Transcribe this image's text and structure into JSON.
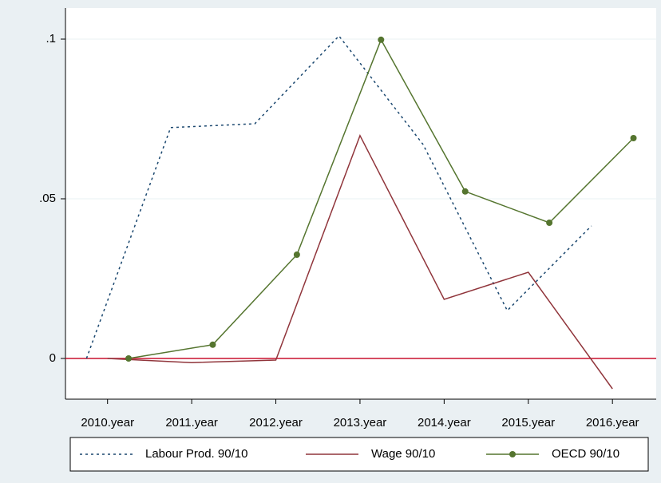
{
  "chart_data": {
    "type": "line",
    "xlim": [
      2009.5,
      2016.52
    ],
    "xticks": [
      {
        "value": 2010,
        "label": "2010.year"
      },
      {
        "value": 2011,
        "label": "2011.year"
      },
      {
        "value": 2012,
        "label": "2012.year"
      },
      {
        "value": 2013,
        "label": "2013.year"
      },
      {
        "value": 2014,
        "label": "2014.year"
      },
      {
        "value": 2015,
        "label": "2015.year"
      },
      {
        "value": 2016,
        "label": "2016.year"
      }
    ],
    "ylim": [
      -0.01275,
      0.10975
    ],
    "yticks": [
      0,
      {
        "value": 0.05,
        "label": ".05"
      },
      {
        "value": 0.1,
        "label": ".1"
      }
    ],
    "grid": true,
    "yline": {
      "value": 0,
      "color": "#c8102e"
    },
    "legend": "bottom",
    "series": [
      {
        "name": "Labour Prod. 90/10",
        "color": "#1a476f",
        "style": "dotted",
        "x": [
          2009.75,
          2010.75,
          2011.75,
          2012.75,
          2013.75,
          2014.75,
          2015.75
        ],
        "values": [
          0,
          0.0723,
          0.0735,
          0.101,
          0.067,
          0.015,
          0.0415
        ]
      },
      {
        "name": "Wage 90/10",
        "color": "#90353b",
        "style": "solid",
        "x": [
          2010,
          2011,
          2012,
          2013,
          2014,
          2015,
          2016
        ],
        "values": [
          0,
          -0.0013,
          -0.0005,
          0.0698,
          0.0185,
          0.027,
          -0.0095
        ]
      },
      {
        "name": "OECD 90/10",
        "color": "#55752f",
        "style": "solid",
        "marker": "circle",
        "x": [
          2010.25,
          2011.25,
          2012.25,
          2013.25,
          2014.25,
          2015.25,
          2016.25
        ],
        "values": [
          0,
          0.0043,
          0.0325,
          0.0998,
          0.0523,
          0.0425,
          0.069
        ]
      }
    ]
  }
}
